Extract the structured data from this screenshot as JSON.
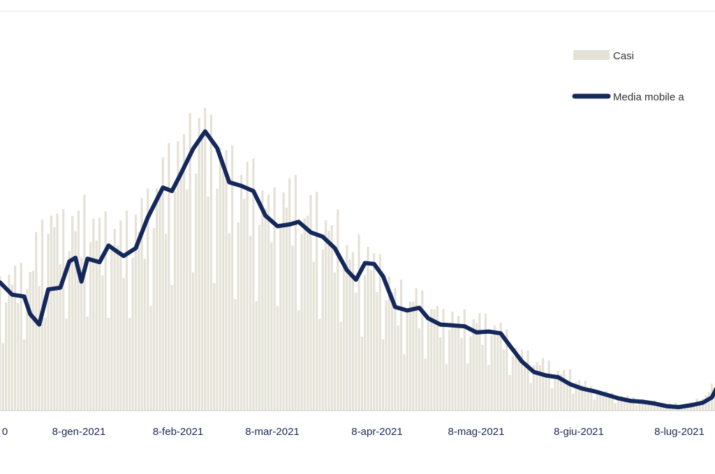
{
  "chart_data": {
    "type": "bar",
    "x_tick_labels": [
      "0",
      "8-gen-2021",
      "8-feb-2021",
      "8-mar-2021",
      "8-apr-2021",
      "8-mag-2021",
      "8-giu-2021",
      "8-lug-2021"
    ],
    "legend": {
      "placement": "top-right",
      "entries": [
        {
          "label": "Casi",
          "kind": "bar",
          "color": "#e4e1d6"
        },
        {
          "label": "Media mobile a",
          "kind": "line",
          "color": "#14285c"
        }
      ]
    },
    "colors": {
      "bars": "#e4e1d6",
      "line": "#14285c",
      "axis": "#d8d8d8",
      "tick_text": "#1a2a55"
    },
    "grid": false,
    "moving_average_anchors": [
      {
        "day": 0,
        "value": 1460
      },
      {
        "day": 4,
        "value": 1320
      },
      {
        "day": 8,
        "value": 1300
      },
      {
        "day": 10,
        "value": 1100
      },
      {
        "day": 13,
        "value": 980
      },
      {
        "day": 16,
        "value": 1380
      },
      {
        "day": 20,
        "value": 1400
      },
      {
        "day": 23,
        "value": 1700
      },
      {
        "day": 25,
        "value": 1740
      },
      {
        "day": 27,
        "value": 1470
      },
      {
        "day": 29,
        "value": 1730
      },
      {
        "day": 33,
        "value": 1690
      },
      {
        "day": 36,
        "value": 1880
      },
      {
        "day": 38,
        "value": 1830
      },
      {
        "day": 41,
        "value": 1760
      },
      {
        "day": 45,
        "value": 1850
      },
      {
        "day": 49,
        "value": 2200
      },
      {
        "day": 54,
        "value": 2540
      },
      {
        "day": 57,
        "value": 2500
      },
      {
        "day": 60,
        "value": 2700
      },
      {
        "day": 64,
        "value": 2980
      },
      {
        "day": 68,
        "value": 3180
      },
      {
        "day": 72,
        "value": 2990
      },
      {
        "day": 76,
        "value": 2600
      },
      {
        "day": 80,
        "value": 2560
      },
      {
        "day": 84,
        "value": 2500
      },
      {
        "day": 88,
        "value": 2220
      },
      {
        "day": 92,
        "value": 2100
      },
      {
        "day": 96,
        "value": 2120
      },
      {
        "day": 99,
        "value": 2150
      },
      {
        "day": 103,
        "value": 2030
      },
      {
        "day": 107,
        "value": 1980
      },
      {
        "day": 111,
        "value": 1850
      },
      {
        "day": 115,
        "value": 1600
      },
      {
        "day": 118,
        "value": 1490
      },
      {
        "day": 121,
        "value": 1680
      },
      {
        "day": 124,
        "value": 1670
      },
      {
        "day": 127,
        "value": 1530
      },
      {
        "day": 131,
        "value": 1180
      },
      {
        "day": 135,
        "value": 1140
      },
      {
        "day": 139,
        "value": 1170
      },
      {
        "day": 142,
        "value": 1050
      },
      {
        "day": 146,
        "value": 980
      },
      {
        "day": 150,
        "value": 970
      },
      {
        "day": 154,
        "value": 960
      },
      {
        "day": 158,
        "value": 890
      },
      {
        "day": 162,
        "value": 900
      },
      {
        "day": 166,
        "value": 880
      },
      {
        "day": 169,
        "value": 740
      },
      {
        "day": 173,
        "value": 560
      },
      {
        "day": 177,
        "value": 440
      },
      {
        "day": 181,
        "value": 400
      },
      {
        "day": 185,
        "value": 380
      },
      {
        "day": 189,
        "value": 300
      },
      {
        "day": 193,
        "value": 250
      },
      {
        "day": 197,
        "value": 220
      },
      {
        "day": 201,
        "value": 180
      },
      {
        "day": 205,
        "value": 140
      },
      {
        "day": 209,
        "value": 110
      },
      {
        "day": 213,
        "value": 100
      },
      {
        "day": 217,
        "value": 80
      },
      {
        "day": 221,
        "value": 50
      },
      {
        "day": 225,
        "value": 40
      },
      {
        "day": 229,
        "value": 60
      },
      {
        "day": 233,
        "value": 90
      },
      {
        "day": 236,
        "value": 150
      },
      {
        "day": 239,
        "value": 350
      },
      {
        "day": 241,
        "value": 510
      }
    ],
    "daily_case_anchors": [
      {
        "day": 0,
        "value": 1700
      },
      {
        "day": 10,
        "value": 1900
      },
      {
        "day": 16,
        "value": 2600
      },
      {
        "day": 21,
        "value": 2400
      },
      {
        "day": 28,
        "value": 2500
      },
      {
        "day": 36,
        "value": 2350
      },
      {
        "day": 44,
        "value": 2400
      },
      {
        "day": 52,
        "value": 3000
      },
      {
        "day": 58,
        "value": 3300
      },
      {
        "day": 64,
        "value": 3850
      },
      {
        "day": 68,
        "value": 3700
      },
      {
        "day": 72,
        "value": 3300
      },
      {
        "day": 80,
        "value": 3000
      },
      {
        "day": 88,
        "value": 2800
      },
      {
        "day": 96,
        "value": 2750
      },
      {
        "day": 104,
        "value": 2550
      },
      {
        "day": 112,
        "value": 2300
      },
      {
        "day": 118,
        "value": 2000
      },
      {
        "day": 124,
        "value": 2050
      },
      {
        "day": 132,
        "value": 1500
      },
      {
        "day": 140,
        "value": 1450
      },
      {
        "day": 148,
        "value": 1250
      },
      {
        "day": 156,
        "value": 1200
      },
      {
        "day": 164,
        "value": 1150
      },
      {
        "day": 172,
        "value": 800
      },
      {
        "day": 180,
        "value": 620
      },
      {
        "day": 188,
        "value": 500
      },
      {
        "day": 196,
        "value": 300
      },
      {
        "day": 204,
        "value": 200
      },
      {
        "day": 212,
        "value": 150
      },
      {
        "day": 220,
        "value": 100
      },
      {
        "day": 228,
        "value": 90
      },
      {
        "day": 234,
        "value": 200
      },
      {
        "day": 238,
        "value": 450
      },
      {
        "day": 241,
        "value": 700
      }
    ],
    "estimated_days": 242,
    "y_range": [
      0,
      4200
    ]
  }
}
